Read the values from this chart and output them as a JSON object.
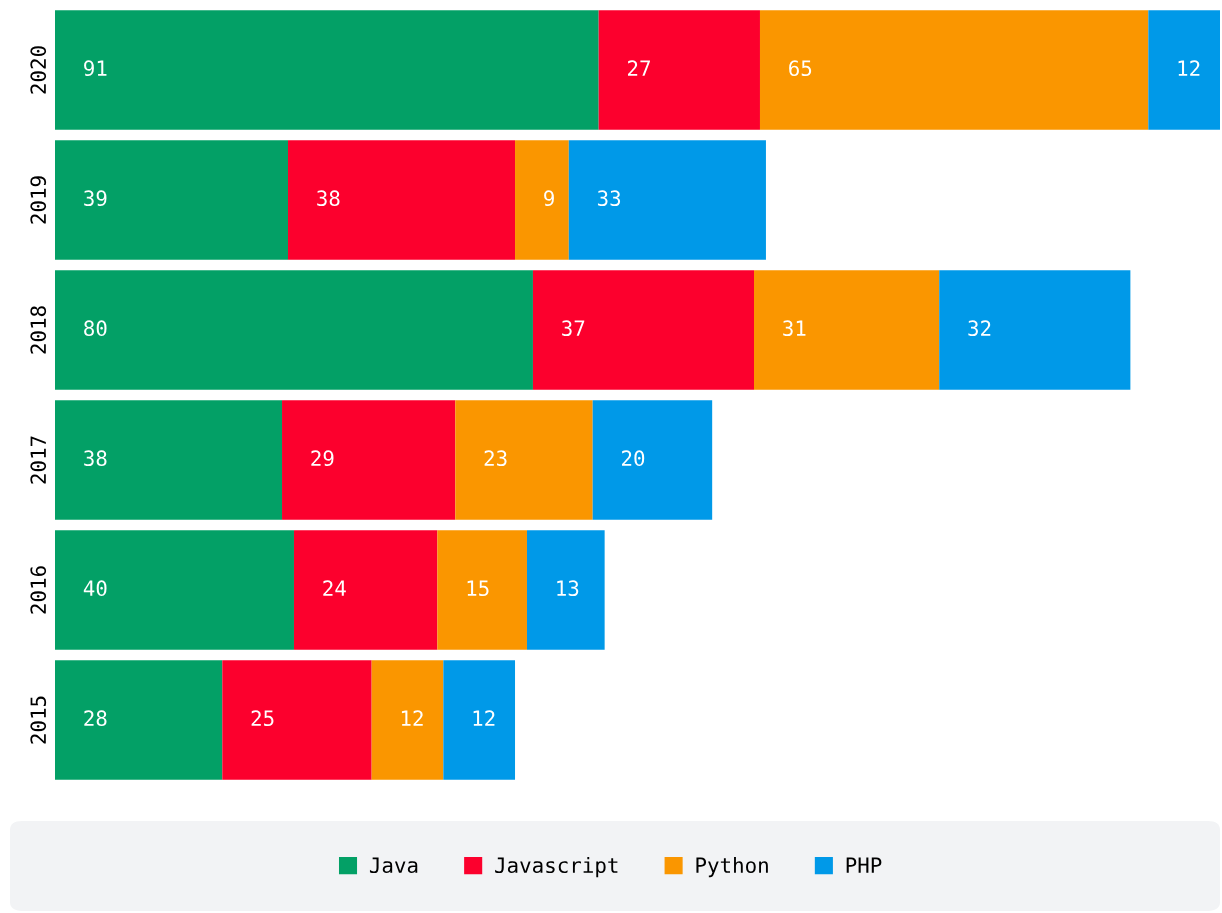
{
  "chart_data": {
    "type": "bar",
    "orientation": "horizontal",
    "stacked": true,
    "data_labels": true,
    "legend": "bottom",
    "grid": false,
    "tick_labels": "y",
    "categories": [
      "2020",
      "2019",
      "2018",
      "2017",
      "2016",
      "2015"
    ],
    "series": [
      {
        "name": "Java",
        "color": "#03a066",
        "values": [
          91,
          39,
          80,
          38,
          40,
          28
        ]
      },
      {
        "name": "Javascript",
        "color": "#fc002d",
        "values": [
          27,
          38,
          37,
          29,
          24,
          25
        ]
      },
      {
        "name": "Python",
        "color": "#fa9600",
        "values": [
          65,
          9,
          31,
          23,
          15,
          12
        ]
      },
      {
        "name": "PHP",
        "color": "#0099e8",
        "values": [
          12,
          33,
          32,
          20,
          13,
          12
        ]
      }
    ]
  }
}
